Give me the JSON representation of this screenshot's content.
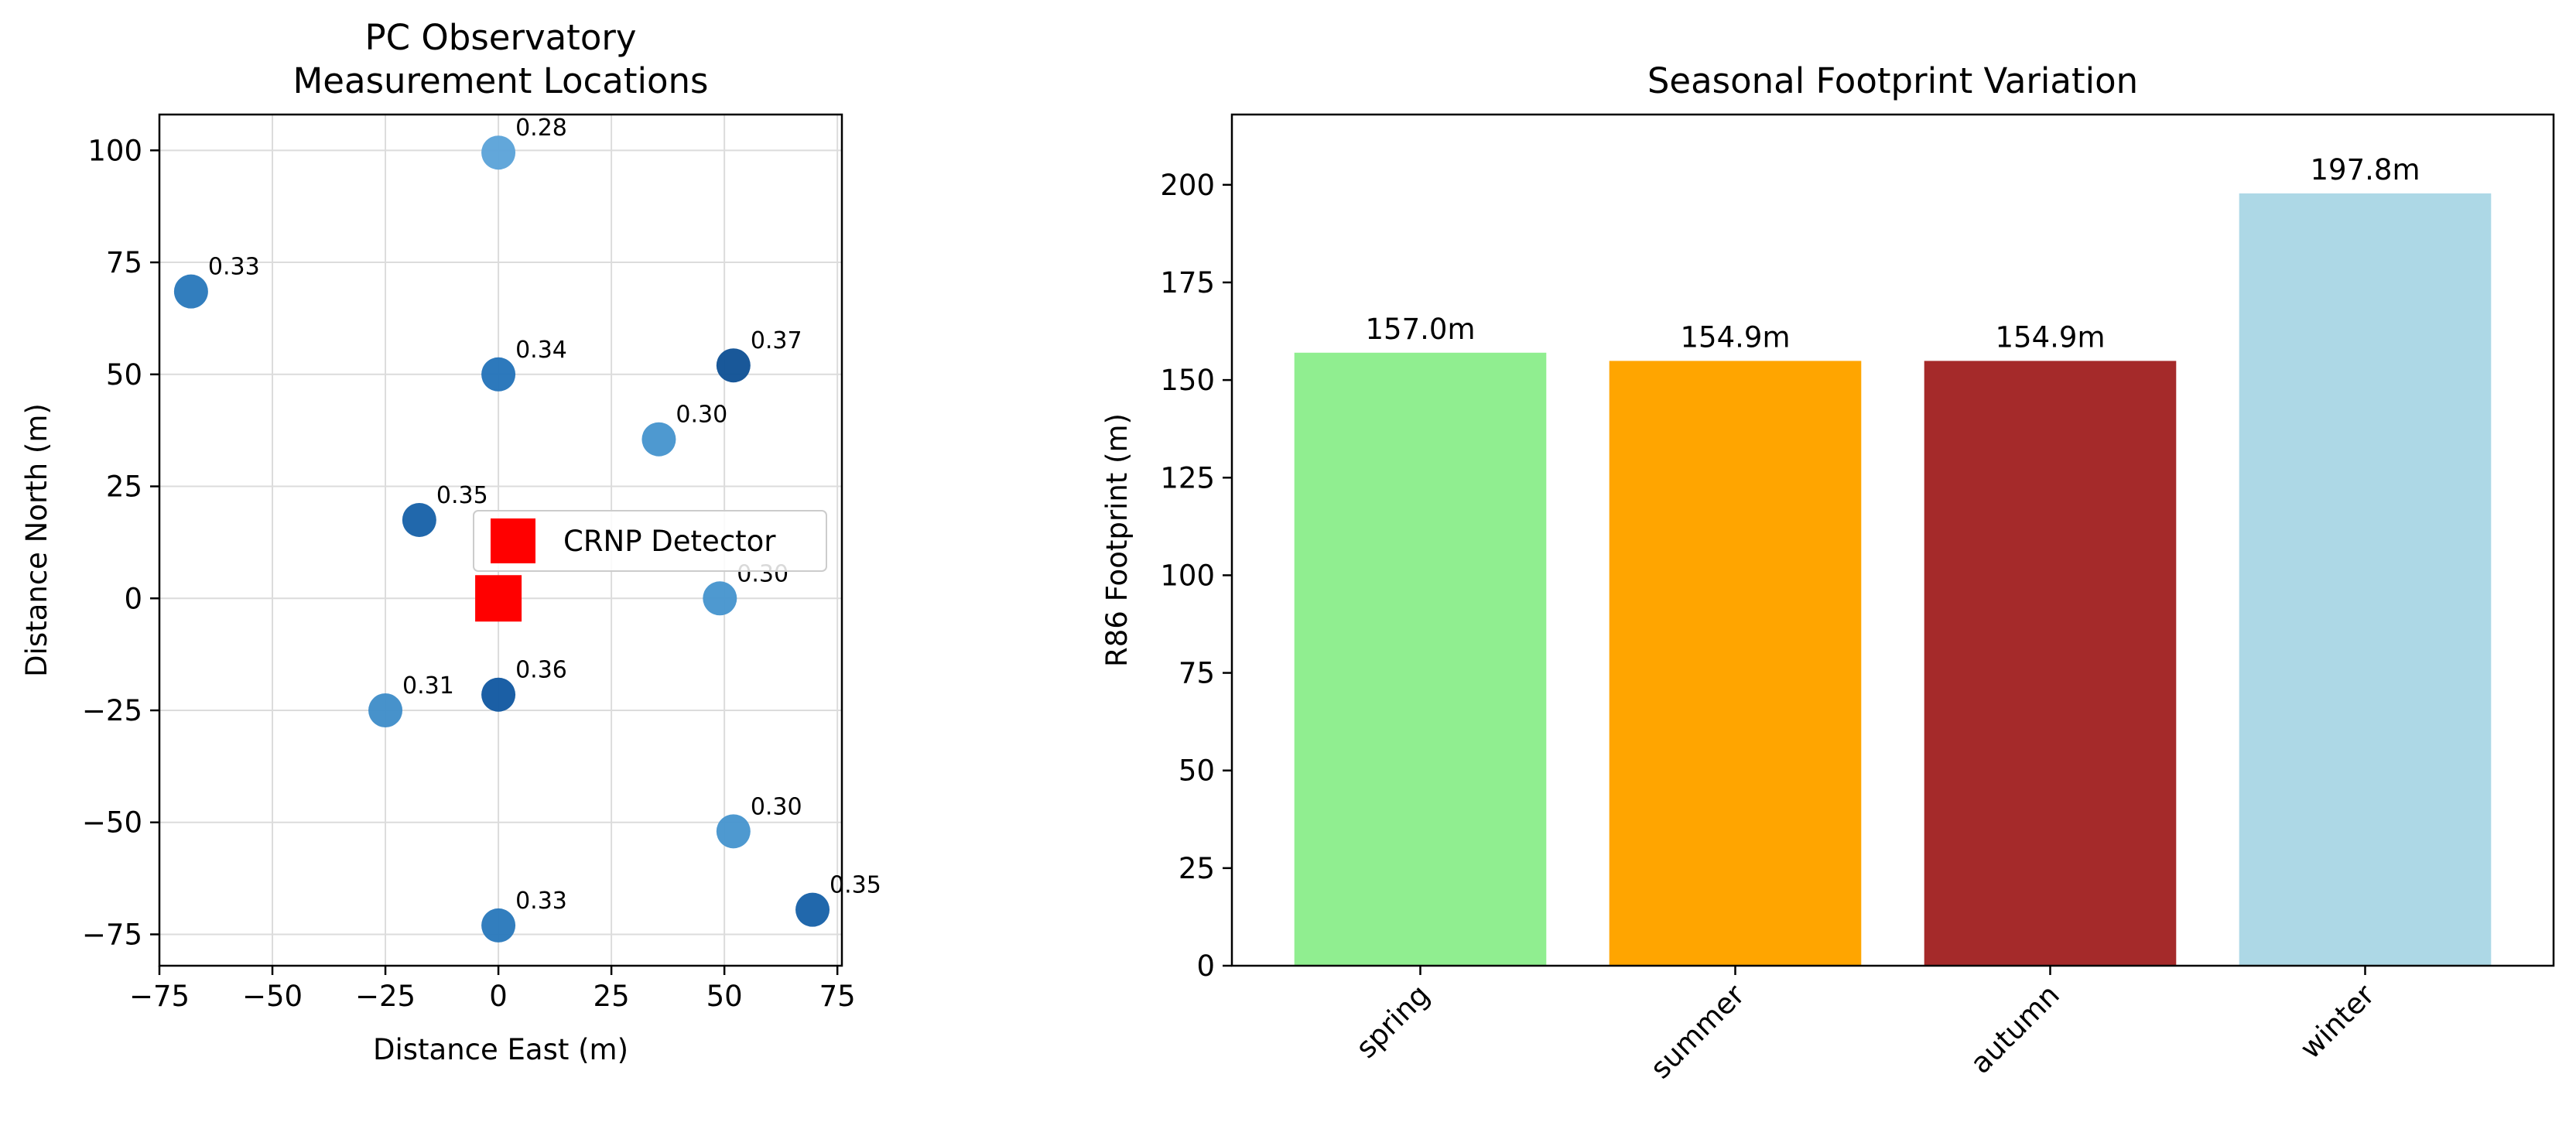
{
  "chart_data": [
    {
      "type": "scatter",
      "title_lines": [
        "PC Observatory",
        "Measurement Locations"
      ],
      "xlabel": "Distance East (m)",
      "ylabel": "Distance North (m)",
      "xlim": [
        -75,
        76
      ],
      "ylim": [
        -82,
        108
      ],
      "xticks": [
        -75,
        -50,
        -25,
        0,
        25,
        50,
        75
      ],
      "yticks": [
        -75,
        -50,
        -25,
        0,
        25,
        50,
        75,
        100
      ],
      "grid": true,
      "legend": {
        "position": "right",
        "label": "CRNP Detector"
      },
      "detector": {
        "x": 0,
        "y": 0,
        "color": "#ff0000",
        "marker": "square"
      },
      "points": [
        {
          "x": 0,
          "y": 99.5,
          "value": 0.28,
          "label": "0.28",
          "color": "#5aa2d8"
        },
        {
          "x": -68,
          "y": 68.5,
          "value": 0.33,
          "label": "0.33",
          "color": "#2777bb"
        },
        {
          "x": 0,
          "y": 50,
          "value": 0.34,
          "label": "0.34",
          "color": "#2272b8"
        },
        {
          "x": 52,
          "y": 52,
          "value": 0.37,
          "label": "0.37",
          "color": "#0d4f94"
        },
        {
          "x": 35.5,
          "y": 35.5,
          "value": 0.3,
          "label": "0.30",
          "color": "#4594cd"
        },
        {
          "x": -17.5,
          "y": 17.5,
          "value": 0.35,
          "label": "0.35",
          "color": "#1560a8"
        },
        {
          "x": 49,
          "y": 0,
          "value": 0.3,
          "label": "0.30",
          "color": "#4594cd"
        },
        {
          "x": 0,
          "y": -21.5,
          "value": 0.36,
          "label": "0.36",
          "color": "#0f56a0"
        },
        {
          "x": -25,
          "y": -25,
          "value": 0.31,
          "label": "0.31",
          "color": "#3d8cc8"
        },
        {
          "x": 52,
          "y": -52,
          "value": 0.3,
          "label": "0.30",
          "color": "#4594cd"
        },
        {
          "x": 69.5,
          "y": -69.5,
          "value": 0.35,
          "label": "0.35",
          "color": "#1560a8"
        },
        {
          "x": 0,
          "y": -73,
          "value": 0.33,
          "label": "0.33",
          "color": "#2777bb"
        }
      ]
    },
    {
      "type": "bar",
      "title": "Seasonal Footprint Variation",
      "ylabel": "R86 Footprint (m)",
      "categories": [
        "spring",
        "summer",
        "autumn",
        "winter"
      ],
      "values": [
        157.0,
        154.9,
        154.9,
        197.8
      ],
      "value_labels": [
        "157.0m",
        "154.9m",
        "154.9m",
        "197.8m"
      ],
      "colors": [
        "#90ee90",
        "#ffa500",
        "#a52a2a",
        "#add8e6"
      ],
      "ylim": [
        0,
        218
      ],
      "yticks": [
        0,
        25,
        50,
        75,
        100,
        125,
        150,
        175,
        200
      ],
      "grid": false
    }
  ]
}
